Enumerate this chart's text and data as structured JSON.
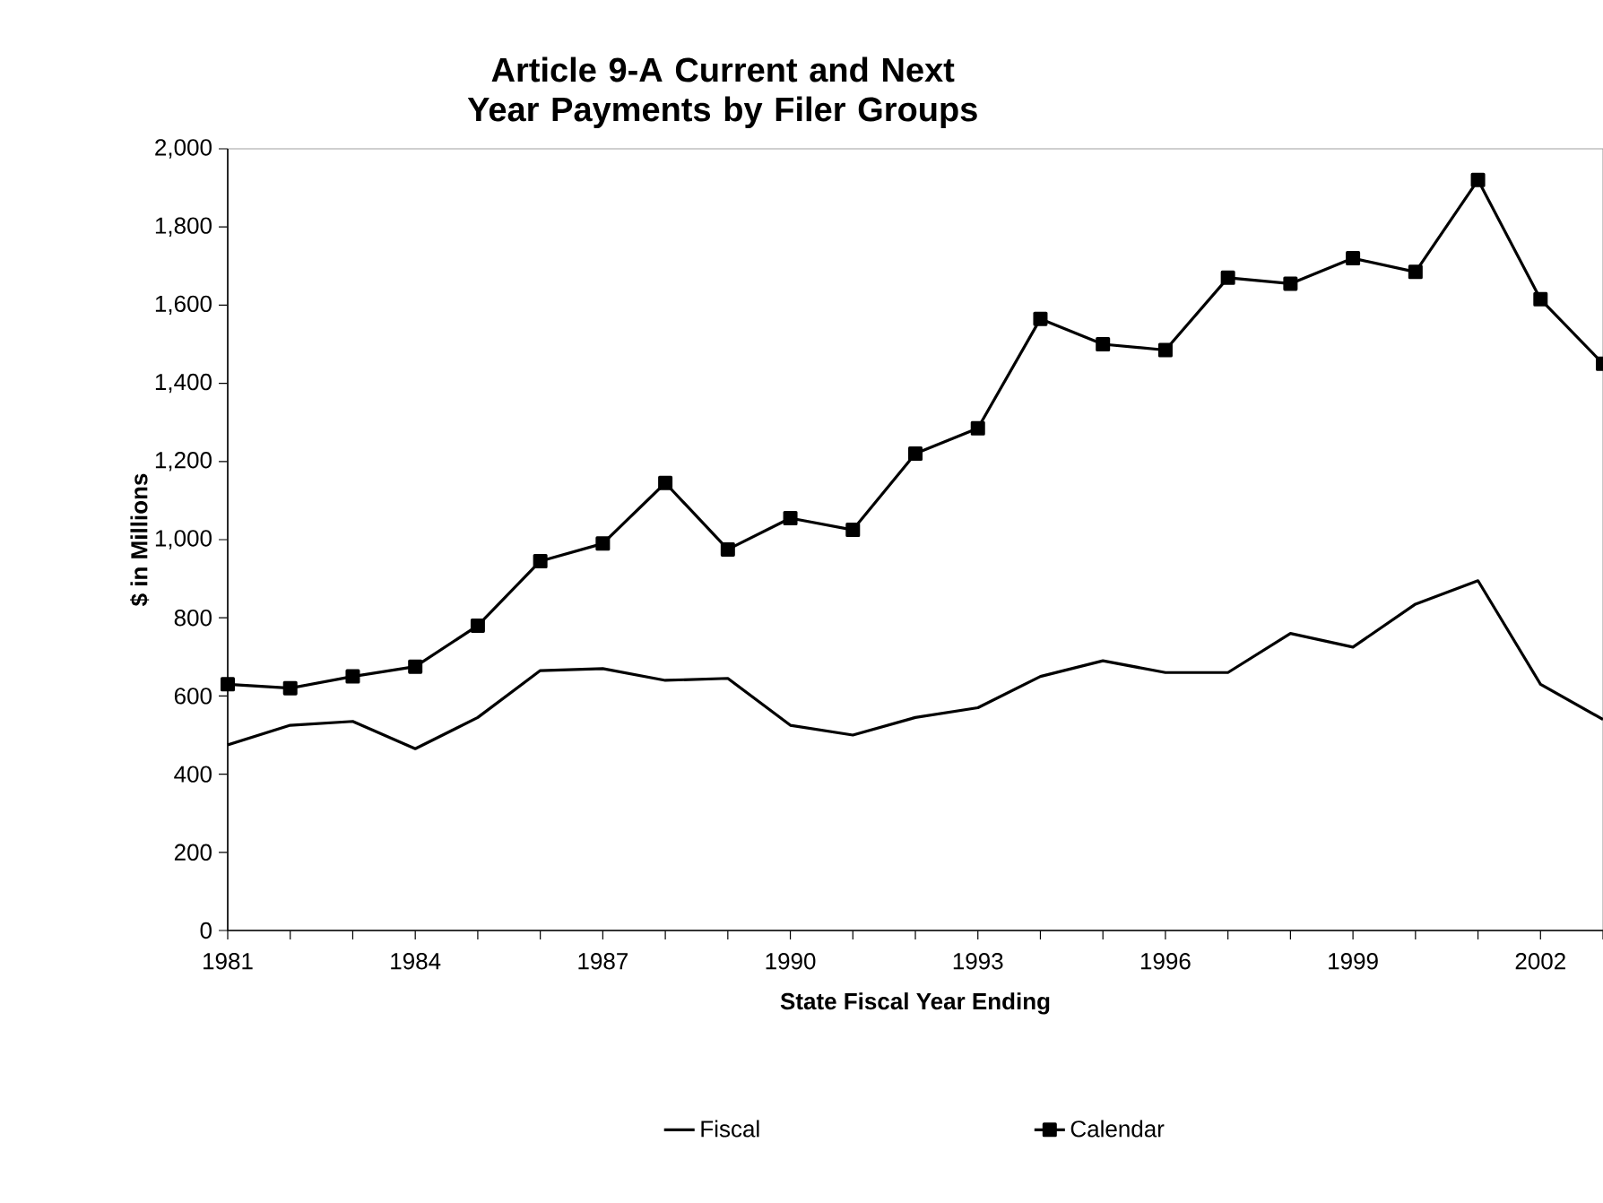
{
  "chart_data": {
    "type": "line",
    "title": "Article 9-A Current and Next Year Payments by Filer Groups",
    "xlabel": "State Fiscal Year Ending",
    "ylabel": "$ in Millions",
    "x": [
      1981,
      1982,
      1983,
      1984,
      1985,
      1986,
      1987,
      1988,
      1989,
      1990,
      1991,
      1992,
      1993,
      1994,
      1995,
      1996,
      1997,
      1998,
      1999,
      2000,
      2001,
      2002,
      2003
    ],
    "series": [
      {
        "name": "Fiscal",
        "color": "#000000",
        "marker": "none",
        "values": [
          475,
          525,
          535,
          465,
          545,
          665,
          670,
          640,
          645,
          525,
          500,
          545,
          570,
          650,
          690,
          660,
          660,
          760,
          725,
          835,
          895,
          630,
          540
        ]
      },
      {
        "name": "Calendar",
        "color": "#000000",
        "marker": "square",
        "values": [
          630,
          620,
          650,
          675,
          780,
          945,
          990,
          1145,
          975,
          1055,
          1025,
          1220,
          1285,
          1565,
          1500,
          1485,
          1670,
          1655,
          1720,
          1685,
          1920,
          1615,
          1450
        ]
      }
    ],
    "xlim": [
      1981,
      2003
    ],
    "xticks": [
      1981,
      {
        "value": 1982,
        "label": null
      },
      {
        "value": 1983,
        "label": null
      },
      1984,
      {
        "value": 1985,
        "label": null
      },
      {
        "value": 1986,
        "label": null
      },
      1987,
      {
        "value": 1988,
        "label": null
      },
      {
        "value": 1989,
        "label": null
      },
      1990,
      {
        "value": 1991,
        "label": null
      },
      {
        "value": 1992,
        "label": null
      },
      1993,
      {
        "value": 1994,
        "label": null
      },
      {
        "value": 1995,
        "label": null
      },
      1996,
      {
        "value": 1997,
        "label": null
      },
      {
        "value": 1998,
        "label": null
      },
      1999,
      {
        "value": 2000,
        "label": null
      },
      {
        "value": 2001,
        "label": null
      },
      2002,
      {
        "value": 2003,
        "label": null
      }
    ],
    "ylim": [
      0,
      2000
    ],
    "yticks": [
      0,
      200,
      400,
      600,
      800,
      {
        "value": 1000,
        "label": "1,000"
      },
      {
        "value": 1200,
        "label": "1,200"
      },
      {
        "value": 1400,
        "label": "1,400"
      },
      {
        "value": 1600,
        "label": "1,600"
      },
      {
        "value": 1800,
        "label": "1,800"
      },
      {
        "value": 2000,
        "label": "2,000"
      }
    ],
    "legend": "bottom",
    "line_style": "solid"
  }
}
